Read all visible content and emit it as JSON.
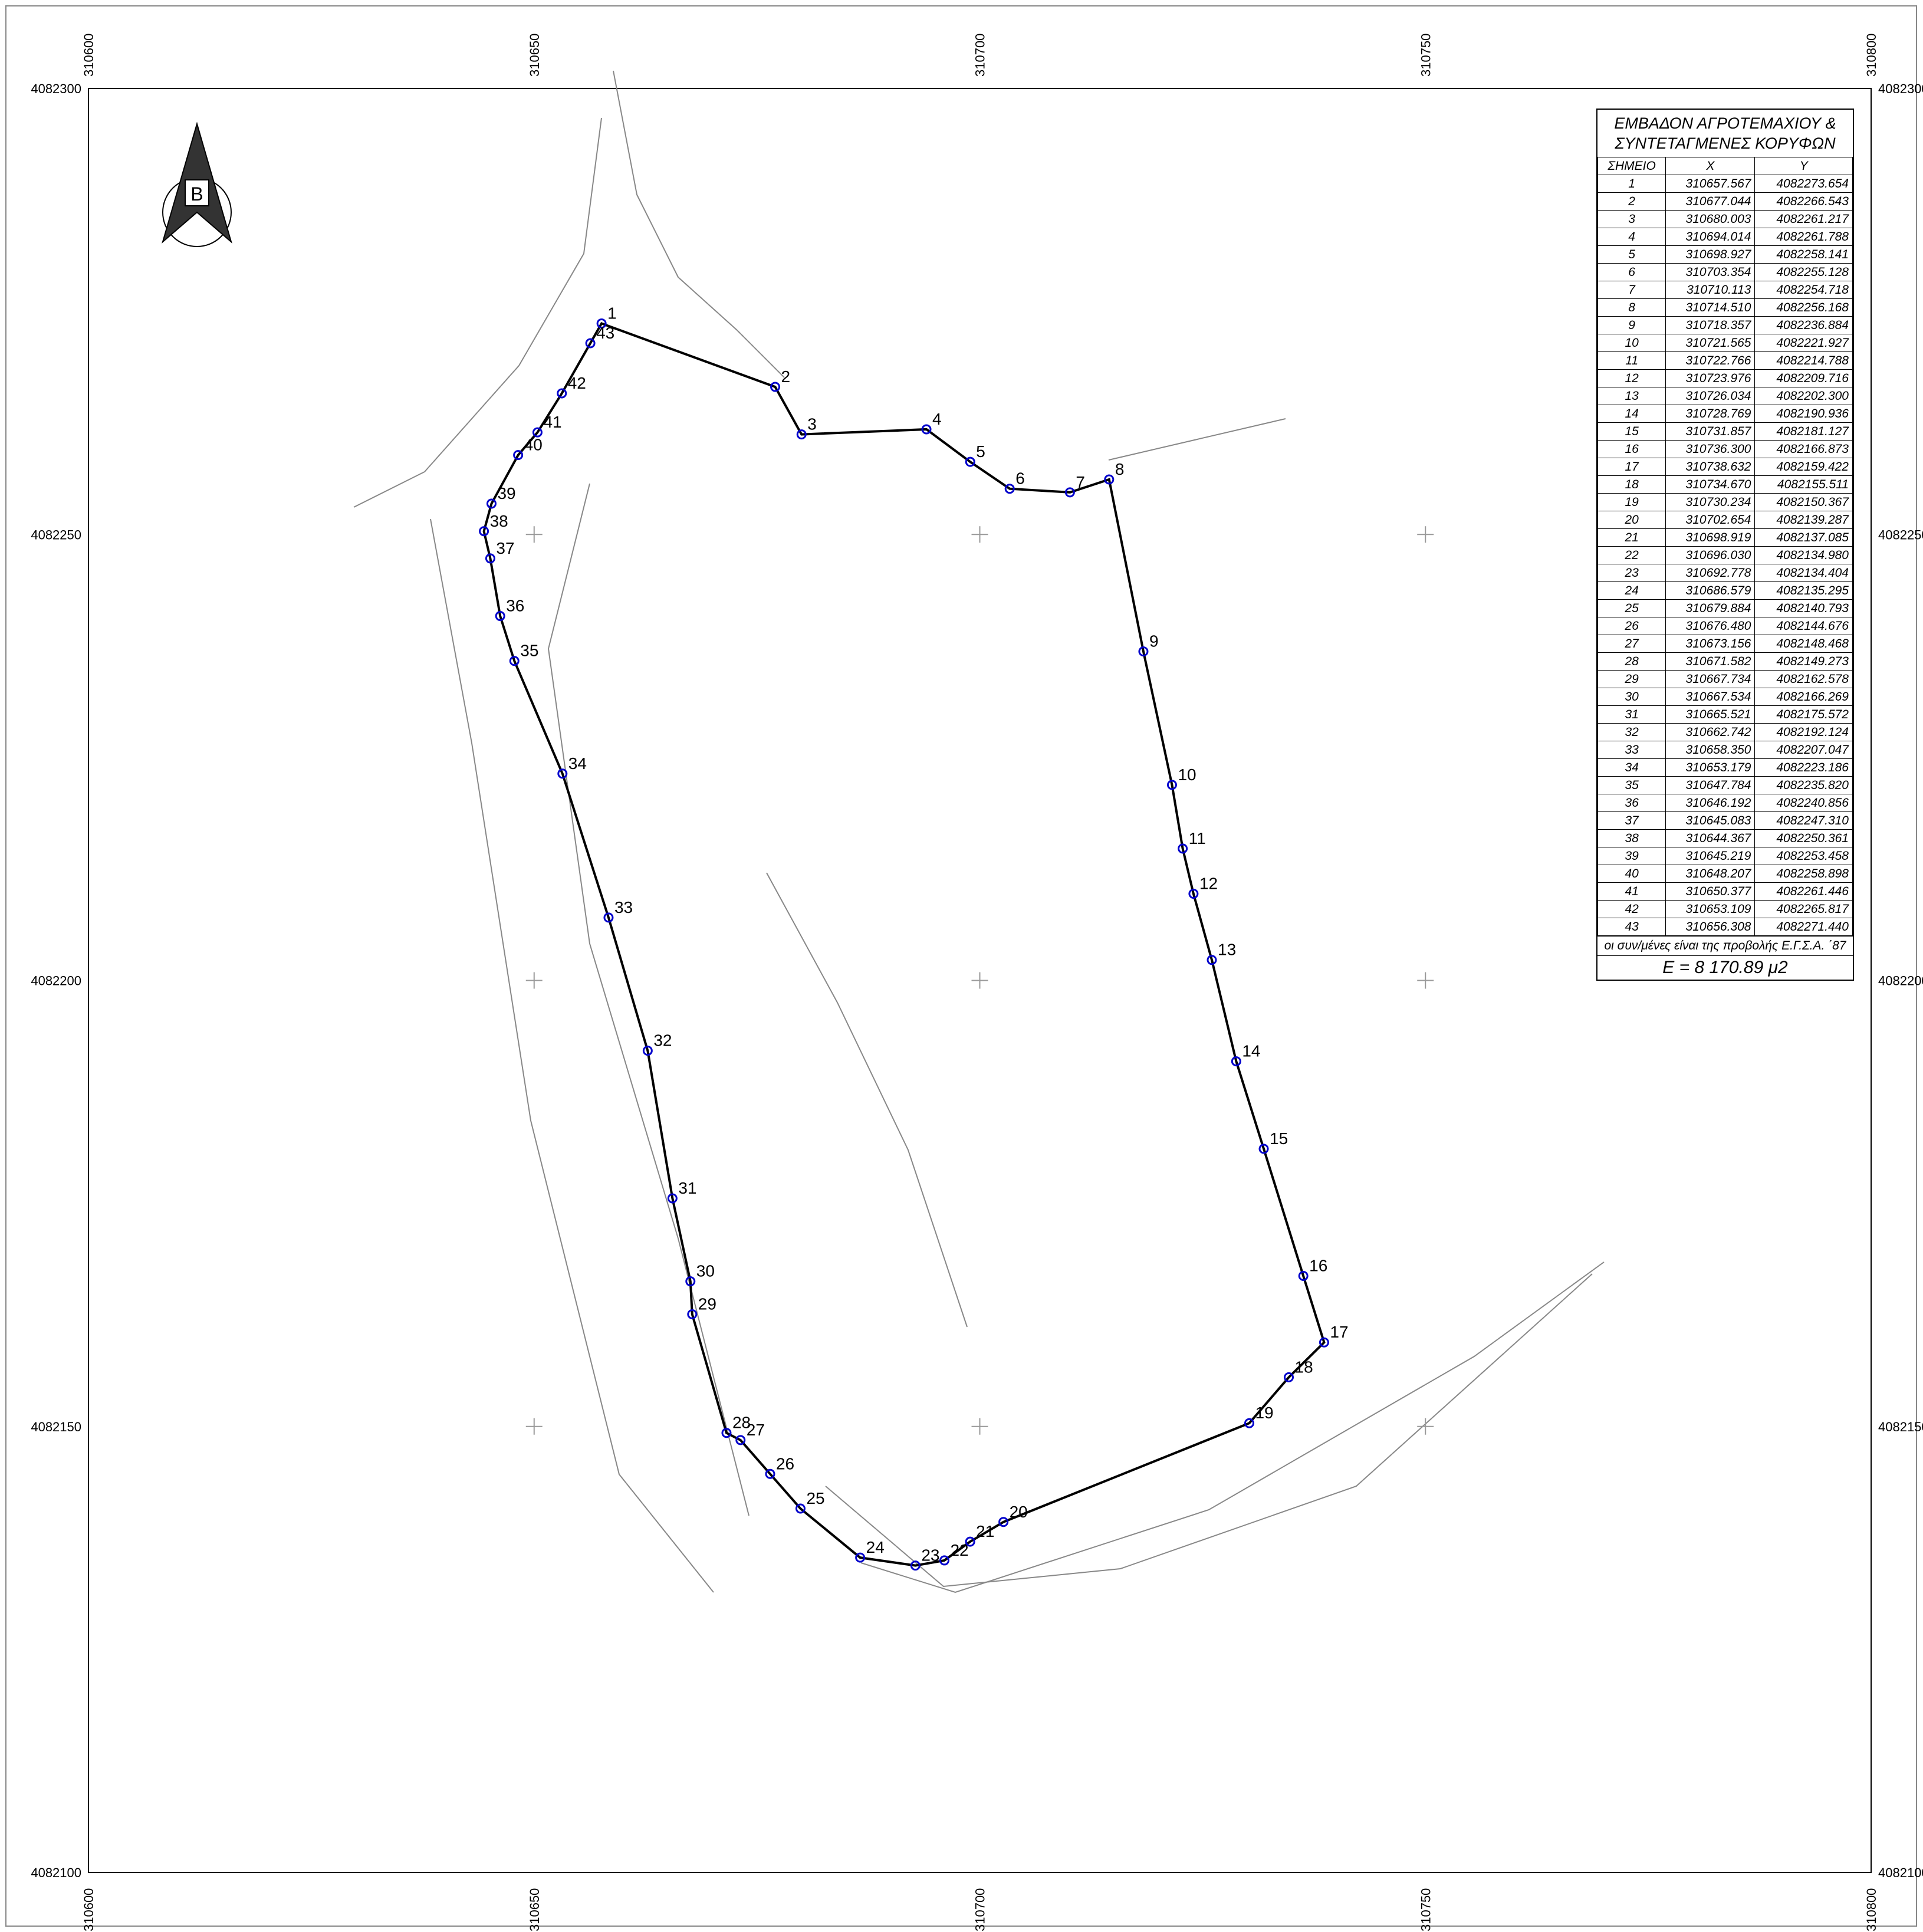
{
  "map": {
    "xticks": [
      310600,
      310650,
      310700,
      310750,
      310800
    ],
    "yticks": [
      4082300,
      4082250,
      4082200,
      4082150,
      4082100
    ],
    "north_arrow": "B",
    "table": {
      "title": [
        "ΕΜΒΑΔΟΝ ΑΓΡΟΤΕΜΑΧΙΟΥ &",
        "ΣΥΝΤΕΤΑΓΜΕΝΕΣ ΚΟΡΥΦΩΝ"
      ],
      "columns": [
        "ΣΗΜΕΙΟ",
        "X",
        "Y"
      ],
      "rows": [
        [
          "1",
          "310657.567",
          "4082273.654"
        ],
        [
          "2",
          "310677.044",
          "4082266.543"
        ],
        [
          "3",
          "310680.003",
          "4082261.217"
        ],
        [
          "4",
          "310694.014",
          "4082261.788"
        ],
        [
          "5",
          "310698.927",
          "4082258.141"
        ],
        [
          "6",
          "310703.354",
          "4082255.128"
        ],
        [
          "7",
          "310710.113",
          "4082254.718"
        ],
        [
          "8",
          "310714.510",
          "4082256.168"
        ],
        [
          "9",
          "310718.357",
          "4082236.884"
        ],
        [
          "10",
          "310721.565",
          "4082221.927"
        ],
        [
          "11",
          "310722.766",
          "4082214.788"
        ],
        [
          "12",
          "310723.976",
          "4082209.716"
        ],
        [
          "13",
          "310726.034",
          "4082202.300"
        ],
        [
          "14",
          "310728.769",
          "4082190.936"
        ],
        [
          "15",
          "310731.857",
          "4082181.127"
        ],
        [
          "16",
          "310736.300",
          "4082166.873"
        ],
        [
          "17",
          "310738.632",
          "4082159.422"
        ],
        [
          "18",
          "310734.670",
          "4082155.511"
        ],
        [
          "19",
          "310730.234",
          "4082150.367"
        ],
        [
          "20",
          "310702.654",
          "4082139.287"
        ],
        [
          "21",
          "310698.919",
          "4082137.085"
        ],
        [
          "22",
          "310696.030",
          "4082134.980"
        ],
        [
          "23",
          "310692.778",
          "4082134.404"
        ],
        [
          "24",
          "310686.579",
          "4082135.295"
        ],
        [
          "25",
          "310679.884",
          "4082140.793"
        ],
        [
          "26",
          "310676.480",
          "4082144.676"
        ],
        [
          "27",
          "310673.156",
          "4082148.468"
        ],
        [
          "28",
          "310671.582",
          "4082149.273"
        ],
        [
          "29",
          "310667.734",
          "4082162.578"
        ],
        [
          "30",
          "310667.534",
          "4082166.269"
        ],
        [
          "31",
          "310665.521",
          "4082175.572"
        ],
        [
          "32",
          "310662.742",
          "4082192.124"
        ],
        [
          "33",
          "310658.350",
          "4082207.047"
        ],
        [
          "34",
          "310653.179",
          "4082223.186"
        ],
        [
          "35",
          "310647.784",
          "4082235.820"
        ],
        [
          "36",
          "310646.192",
          "4082240.856"
        ],
        [
          "37",
          "310645.083",
          "4082247.310"
        ],
        [
          "38",
          "310644.367",
          "4082250.361"
        ],
        [
          "39",
          "310645.219",
          "4082253.458"
        ],
        [
          "40",
          "310648.207",
          "4082258.898"
        ],
        [
          "41",
          "310650.377",
          "4082261.446"
        ],
        [
          "42",
          "310653.109",
          "4082265.817"
        ],
        [
          "43",
          "310656.308",
          "4082271.440"
        ]
      ],
      "note": "οι συν/μένες είναι της προβολής Ε.Γ.Σ.Α. ΄87",
      "area": "E = 8 170.89 μ2"
    }
  }
}
